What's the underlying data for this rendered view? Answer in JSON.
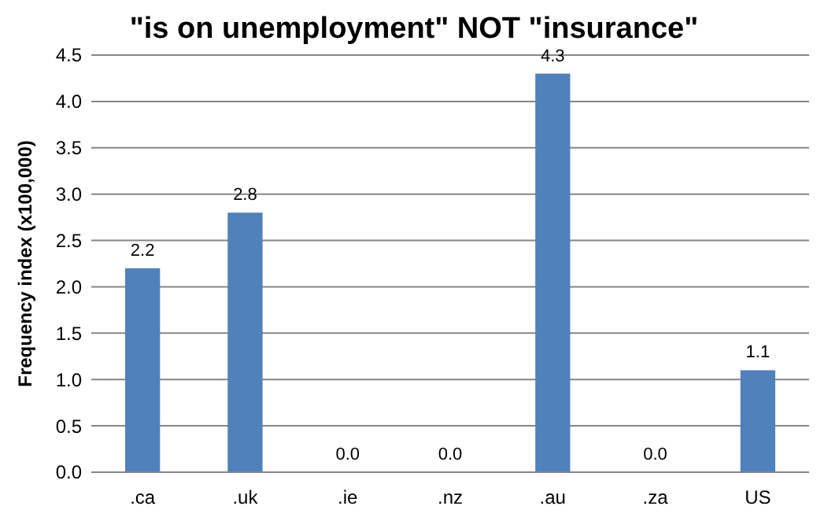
{
  "chart_data": {
    "type": "bar",
    "title": "\"is on unemployment\" NOT \"insurance\"",
    "ylabel": "Frequency index (x100,000)",
    "categories": [
      ".ca",
      ".uk",
      ".ie",
      ".nz",
      ".au",
      ".za",
      "US"
    ],
    "values": [
      2.2,
      2.8,
      0.0,
      0.0,
      4.3,
      0.0,
      1.1
    ],
    "color": "#4f81bd",
    "ylim": [
      0,
      4.5
    ],
    "yticks": [
      {
        "value": 0,
        "label": "0.0"
      },
      {
        "value": 0.5,
        "label": "0.5"
      },
      {
        "value": 1,
        "label": "1.0"
      },
      {
        "value": 1.5,
        "label": "1.5"
      },
      {
        "value": 2,
        "label": "2.0"
      },
      {
        "value": 2.5,
        "label": "2.5"
      },
      {
        "value": 3,
        "label": "3.0"
      },
      {
        "value": 3.5,
        "label": "3.5"
      },
      {
        "value": 4,
        "label": "4.0"
      },
      {
        "value": 4.5,
        "label": "4.5"
      }
    ],
    "value_labels": [
      "2.2",
      "2.8",
      "0.0",
      "0.0",
      "4.3",
      "0.0",
      "1.1"
    ],
    "grid": true
  }
}
